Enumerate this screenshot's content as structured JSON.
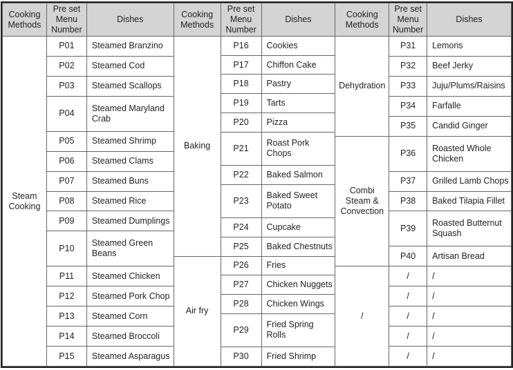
{
  "colors": {
    "header_bg": "#d4d4d4",
    "grid_line": "#666666",
    "outer_border": "#222222",
    "text": "#222222"
  },
  "table": {
    "column_headers": [
      "Cooking Methods",
      "Pre set Menu Number",
      "Dishes"
    ],
    "groups": [
      {
        "sections": [
          {
            "method": "Steam Cooking",
            "rows": [
              [
                "P01",
                "Steamed Branzino"
              ],
              [
                "P02",
                "Steamed Cod"
              ],
              [
                "P03",
                "Steamed Scallops"
              ],
              [
                "P04",
                "Steamed Maryland Crab"
              ],
              [
                "P05",
                "Steamed Shrimp"
              ],
              [
                "P06",
                "Steamed Clams"
              ],
              [
                "P07",
                "Steamed Buns"
              ],
              [
                "P08",
                "Steamed Rice"
              ],
              [
                "P09",
                "Steamed Dumplings"
              ],
              [
                "P10",
                "Steamed Green Beans"
              ],
              [
                "P11",
                "Steamed Chicken"
              ],
              [
                "P12",
                "Steamed Pork Chop"
              ],
              [
                "P13",
                "Steamed Corn"
              ],
              [
                "P14",
                "Steamed Broccoli"
              ],
              [
                "P15",
                "Steamed Asparagus"
              ]
            ]
          }
        ]
      },
      {
        "sections": [
          {
            "method": "Baking",
            "rows": [
              [
                "P16",
                "Cookies"
              ],
              [
                "P17",
                "Chiffon Cake"
              ],
              [
                "P18",
                "Pastry"
              ],
              [
                "P19",
                "Tarts"
              ],
              [
                "P20",
                "Pizza"
              ],
              [
                "P21",
                "Roast Pork Chops"
              ],
              [
                "P22",
                "Baked Salmon"
              ],
              [
                "P23",
                "Baked Sweet Potato"
              ],
              [
                "P24",
                "Cupcake"
              ],
              [
                "P25",
                "Baked Chestnuts"
              ]
            ]
          },
          {
            "method": "Air fry",
            "rows": [
              [
                "P26",
                "Fries"
              ],
              [
                "P27",
                "Chicken Nuggets"
              ],
              [
                "P28",
                "Chicken Wings"
              ],
              [
                "P29",
                "Fried Spring Rolls"
              ],
              [
                "P30",
                "Fried Shrimp"
              ]
            ]
          }
        ]
      },
      {
        "sections": [
          {
            "method": "Dehydration",
            "rows": [
              [
                "P31",
                "Lemons"
              ],
              [
                "P32",
                "Beef Jerky"
              ],
              [
                "P33",
                "Juju/Plums/Raisins"
              ],
              [
                "P34",
                "Farfalle"
              ],
              [
                "P35",
                "Candid Ginger"
              ]
            ]
          },
          {
            "method": "Combi Steam & Convection",
            "rows": [
              [
                "P36",
                "Roasted Whole Chicken"
              ],
              [
                "P37",
                "Grilled Lamb Chops"
              ],
              [
                "P38",
                "Baked Tilapia Fillet"
              ],
              [
                "P39",
                "Roasted Butternut Squash"
              ],
              [
                "P40",
                "Artisan Bread"
              ]
            ]
          },
          {
            "method": "/",
            "rows": [
              [
                "/",
                "/"
              ],
              [
                "/",
                "/"
              ],
              [
                "/",
                "/"
              ],
              [
                "/",
                "/"
              ],
              [
                "/",
                "/"
              ]
            ]
          }
        ]
      }
    ]
  }
}
